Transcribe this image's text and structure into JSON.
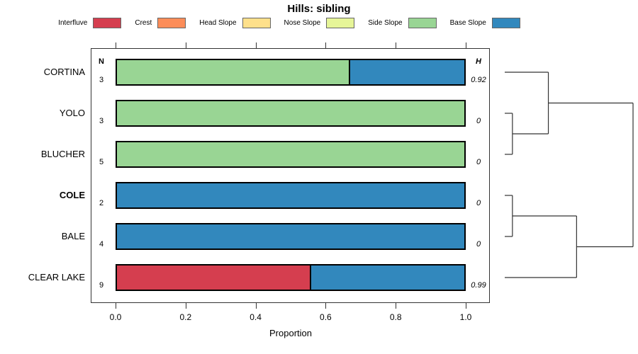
{
  "title": "Hills: sibling",
  "legend": [
    {
      "label": "Interfluve",
      "color": "#d53e4f"
    },
    {
      "label": "Crest",
      "color": "#fc8d59"
    },
    {
      "label": "Head Slope",
      "color": "#fee08b"
    },
    {
      "label": "Nose Slope",
      "color": "#e6f598"
    },
    {
      "label": "Side Slope",
      "color": "#99d594"
    },
    {
      "label": "Base Slope",
      "color": "#3288bd"
    }
  ],
  "chart_data": {
    "type": "bar",
    "orientation": "horizontal",
    "stacked": true,
    "title": "Hills: sibling",
    "xlabel": "Proportion",
    "xlim": [
      0,
      1
    ],
    "xticks": [
      0,
      0.2,
      0.4,
      0.6,
      0.8,
      1
    ],
    "xtick_labels": [
      "0.0",
      "0.2",
      "0.4",
      "0.6",
      "0.8",
      "1.0"
    ],
    "categories": [
      "CORTINA",
      "YOLO",
      "BLUCHER",
      "COLE",
      "BALE",
      "CLEAR LAKE"
    ],
    "bold_category": "COLE",
    "n_header": "N",
    "h_header": "H",
    "n_values": [
      3,
      3,
      5,
      2,
      4,
      9
    ],
    "h_values": [
      "0.92",
      "0",
      "0",
      "0",
      "0",
      "0.99"
    ],
    "series": [
      {
        "name": "Interfluve",
        "values": [
          0,
          0,
          0,
          0,
          0,
          0.556
        ]
      },
      {
        "name": "Crest",
        "values": [
          0,
          0,
          0,
          0,
          0,
          0
        ]
      },
      {
        "name": "Head Slope",
        "values": [
          0,
          0,
          0,
          0,
          0,
          0
        ]
      },
      {
        "name": "Nose Slope",
        "values": [
          0,
          0,
          0,
          0,
          0,
          0
        ]
      },
      {
        "name": "Side Slope",
        "values": [
          0.667,
          1,
          1,
          0,
          0,
          0
        ]
      },
      {
        "name": "Base Slope",
        "values": [
          0.333,
          0,
          0,
          1,
          1,
          0.444
        ]
      }
    ],
    "legend_position": "top",
    "grid": false,
    "dendrogram": {
      "height": 1,
      "children": [
        {
          "height": 0.34,
          "children": [
            {
              "leaf": "CORTINA"
            },
            {
              "height": 0.06,
              "children": [
                {
                  "leaf": "YOLO"
                },
                {
                  "leaf": "BLUCHER"
                }
              ]
            }
          ]
        },
        {
          "height": 0.56,
          "children": [
            {
              "height": 0.06,
              "children": [
                {
                  "leaf": "COLE"
                },
                {
                  "leaf": "BALE"
                }
              ]
            },
            {
              "leaf": "CLEAR LAKE"
            }
          ]
        }
      ]
    }
  }
}
